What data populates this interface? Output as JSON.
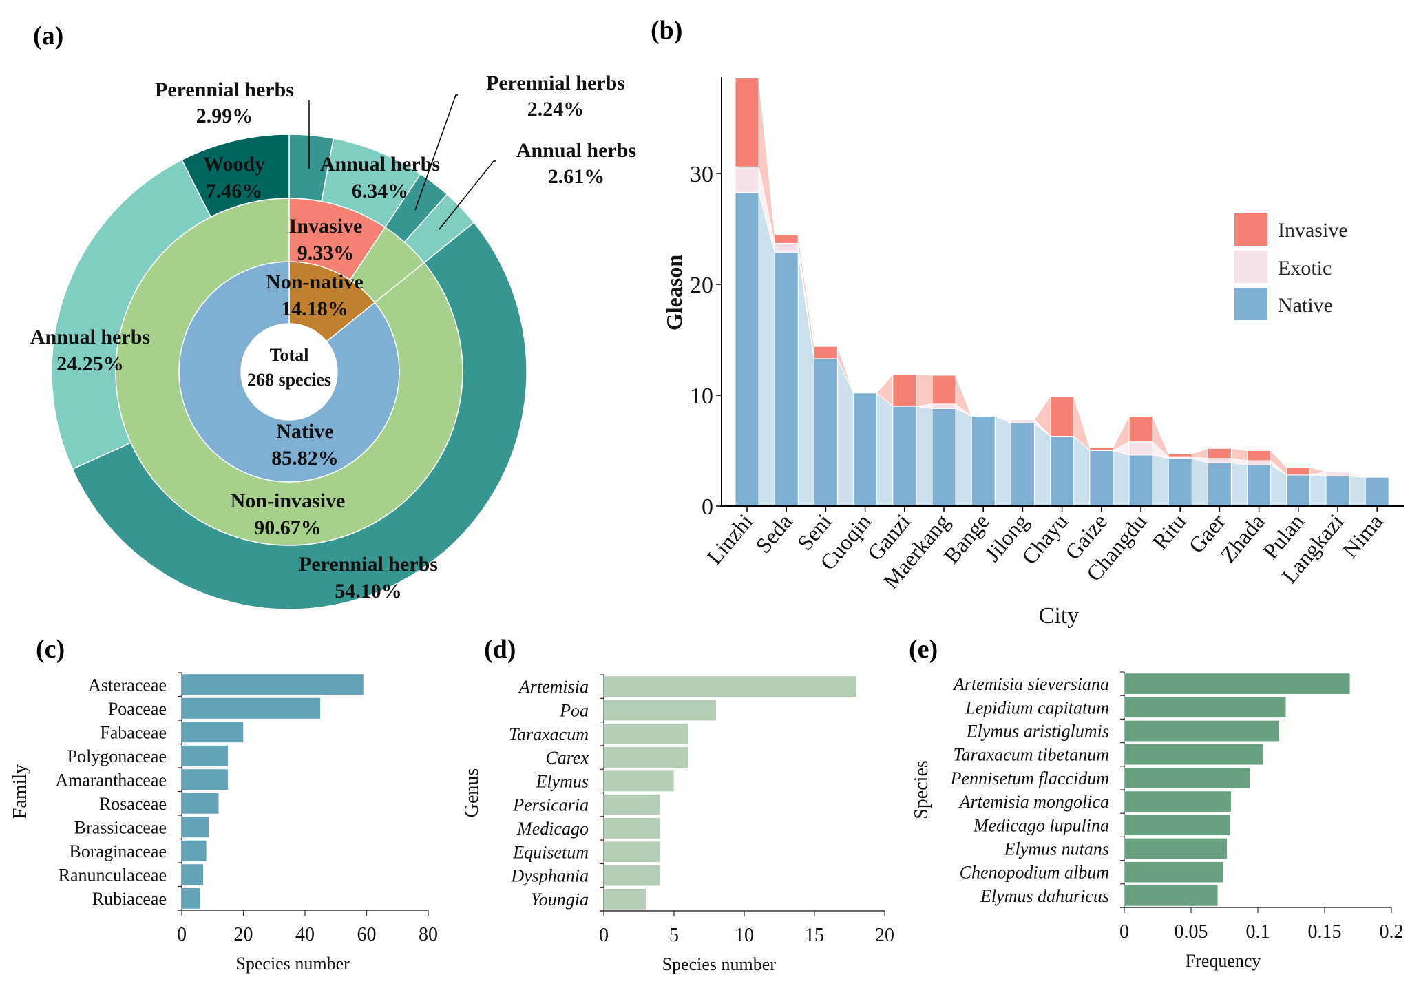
{
  "chart_data": [
    {
      "id": "a",
      "panel_label": "(a)",
      "type": "pie",
      "subtype": "sunburst",
      "center_text": [
        "Total",
        "268 species"
      ],
      "rings": [
        {
          "name": "origin",
          "slices": [
            {
              "label": "Non-native",
              "value": 14.18,
              "display": "14.18%",
              "color": "#c17f30"
            },
            {
              "label": "Native",
              "value": 85.82,
              "display": "85.82%",
              "color": "#7fafd2"
            }
          ]
        },
        {
          "name": "invasiveness",
          "slices": [
            {
              "label": "Invasive",
              "value": 9.33,
              "display": "9.33%",
              "color": "#f48174",
              "show_label": true
            },
            {
              "label": "Non-invasive",
              "value": 4.85,
              "display": "",
              "color": "#a8d08d",
              "show_label": false
            },
            {
              "label": "Non-invasive",
              "value": 85.82,
              "display": "90.67%",
              "color": "#a8d08d",
              "show_label": true
            }
          ]
        },
        {
          "name": "life_form",
          "slices": [
            {
              "label": "Perennial herbs",
              "value": 2.99,
              "display": "2.99%",
              "color": "#37968f"
            },
            {
              "label": "Annual herbs",
              "value": 6.34,
              "display": "6.34%",
              "color": "#80cdc1"
            },
            {
              "label": "Perennial herbs",
              "value": 2.24,
              "display": "2.24%",
              "color": "#37968f"
            },
            {
              "label": "Annual herbs",
              "value": 2.61,
              "display": "2.61%",
              "color": "#80cdc1"
            },
            {
              "label": "Perennial herbs",
              "value": 54.1,
              "display": "54.10%",
              "color": "#37968f"
            },
            {
              "label": "Annual herbs",
              "value": 24.25,
              "display": "24.25%",
              "color": "#80cdc1"
            },
            {
              "label": "Woody",
              "value": 7.46,
              "display": "7.46%",
              "color": "#01665e"
            }
          ]
        }
      ]
    },
    {
      "id": "b",
      "panel_label": "(b)",
      "type": "bar",
      "subtype": "stacked-alluvial",
      "xlabel": "City",
      "ylabel": "Gleason",
      "ylim": [
        0,
        38.6
      ],
      "yticks": [
        0,
        10,
        20,
        30
      ],
      "legend": {
        "position": "right",
        "entries": [
          "Invasive",
          "Exotic",
          "Native"
        ]
      },
      "colors": {
        "Invasive": "#f48174",
        "Exotic": "#f5e1ea",
        "Native": "#7fafd2",
        "flow_native": "#cde0ee",
        "flow_exotic": "#fbf0f4",
        "flow_invasive": "#fbc9c4"
      },
      "categories": [
        "Linzhi",
        "Seda",
        "Seni",
        "Cuoqin",
        "Ganzi",
        "Maerkang",
        "Bange",
        "Jilong",
        "Chayu",
        "Gaize",
        "Changdu",
        "Ritu",
        "Gaer",
        "Zhada",
        "Pulan",
        "Langkazi",
        "Nima"
      ],
      "series": [
        {
          "name": "Native",
          "values": [
            28.3,
            22.9,
            13.3,
            10.2,
            9.0,
            8.8,
            8.1,
            7.5,
            6.3,
            5.0,
            4.6,
            4.3,
            3.9,
            3.7,
            2.8,
            2.7,
            2.6
          ]
        },
        {
          "name": "Exotic",
          "values": [
            2.3,
            0.8,
            0.0,
            0.0,
            0.0,
            0.4,
            0.0,
            0.3,
            0.0,
            0.0,
            1.2,
            0.1,
            0.4,
            0.4,
            0.0,
            0.4,
            0.0
          ]
        },
        {
          "name": "Invasive",
          "values": [
            8.0,
            0.8,
            1.1,
            0.0,
            2.9,
            2.6,
            0.0,
            0.0,
            3.6,
            0.3,
            2.3,
            0.3,
            0.9,
            0.9,
            0.7,
            0.0,
            0.0
          ]
        }
      ]
    },
    {
      "id": "c",
      "panel_label": "(c)",
      "type": "bar",
      "orientation": "horizontal",
      "xlabel": "Species number",
      "ylabel": "Family",
      "xlim": [
        0,
        80
      ],
      "xticks": [
        0,
        20,
        40,
        60,
        80
      ],
      "xtick_labels": [
        "0",
        "20",
        "40",
        "60",
        "80"
      ],
      "color": "#62a3b7",
      "italic": false,
      "categories": [
        "Asteraceae",
        "Poaceae",
        "Fabaceae",
        "Polygonaceae",
        "Amaranthaceae",
        "Rosaceae",
        "Brassicaceae",
        "Boraginaceae",
        "Ranunculaceae",
        "Rubiaceae"
      ],
      "values": [
        59,
        45,
        20,
        15,
        15,
        12,
        9,
        8,
        7,
        6
      ]
    },
    {
      "id": "d",
      "panel_label": "(d)",
      "type": "bar",
      "orientation": "horizontal",
      "xlabel": "Species number",
      "ylabel": "Genus",
      "xlim": [
        0,
        20
      ],
      "xticks": [
        0,
        5,
        10,
        15,
        20
      ],
      "xtick_labels": [
        "0",
        "5",
        "10",
        "15",
        "20"
      ],
      "color": "#b4cdb5",
      "italic": true,
      "categories": [
        "Artemisia",
        "Poa",
        "Taraxacum",
        "Carex",
        "Elymus",
        "Persicaria",
        "Medicago",
        "Equisetum",
        "Dysphania",
        "Youngia"
      ],
      "values": [
        18,
        8,
        6,
        6,
        5,
        4,
        4,
        4,
        4,
        3
      ]
    },
    {
      "id": "e",
      "panel_label": "(e)",
      "type": "bar",
      "orientation": "horizontal",
      "xlabel": "Frequency",
      "ylabel": "Species",
      "xlim": [
        0,
        0.2
      ],
      "xticks": [
        0,
        0.05,
        0.1,
        0.15,
        0.2
      ],
      "xtick_labels": [
        "0",
        "0.05",
        "0.1",
        "0.15",
        "0.2"
      ],
      "color": "#68a17f",
      "italic": true,
      "categories": [
        "Artemisia sieversiana",
        "Lepidium capitatum",
        "Elymus aristiglumis",
        "Taraxacum tibetanum",
        "Pennisetum flaccidum",
        "Artemisia mongolica",
        "Medicago lupulina",
        "Elymus nutans",
        "Chenopodium album",
        "Elymus dahuricus"
      ],
      "values": [
        0.169,
        0.121,
        0.116,
        0.104,
        0.094,
        0.08,
        0.079,
        0.077,
        0.074,
        0.07
      ]
    }
  ]
}
